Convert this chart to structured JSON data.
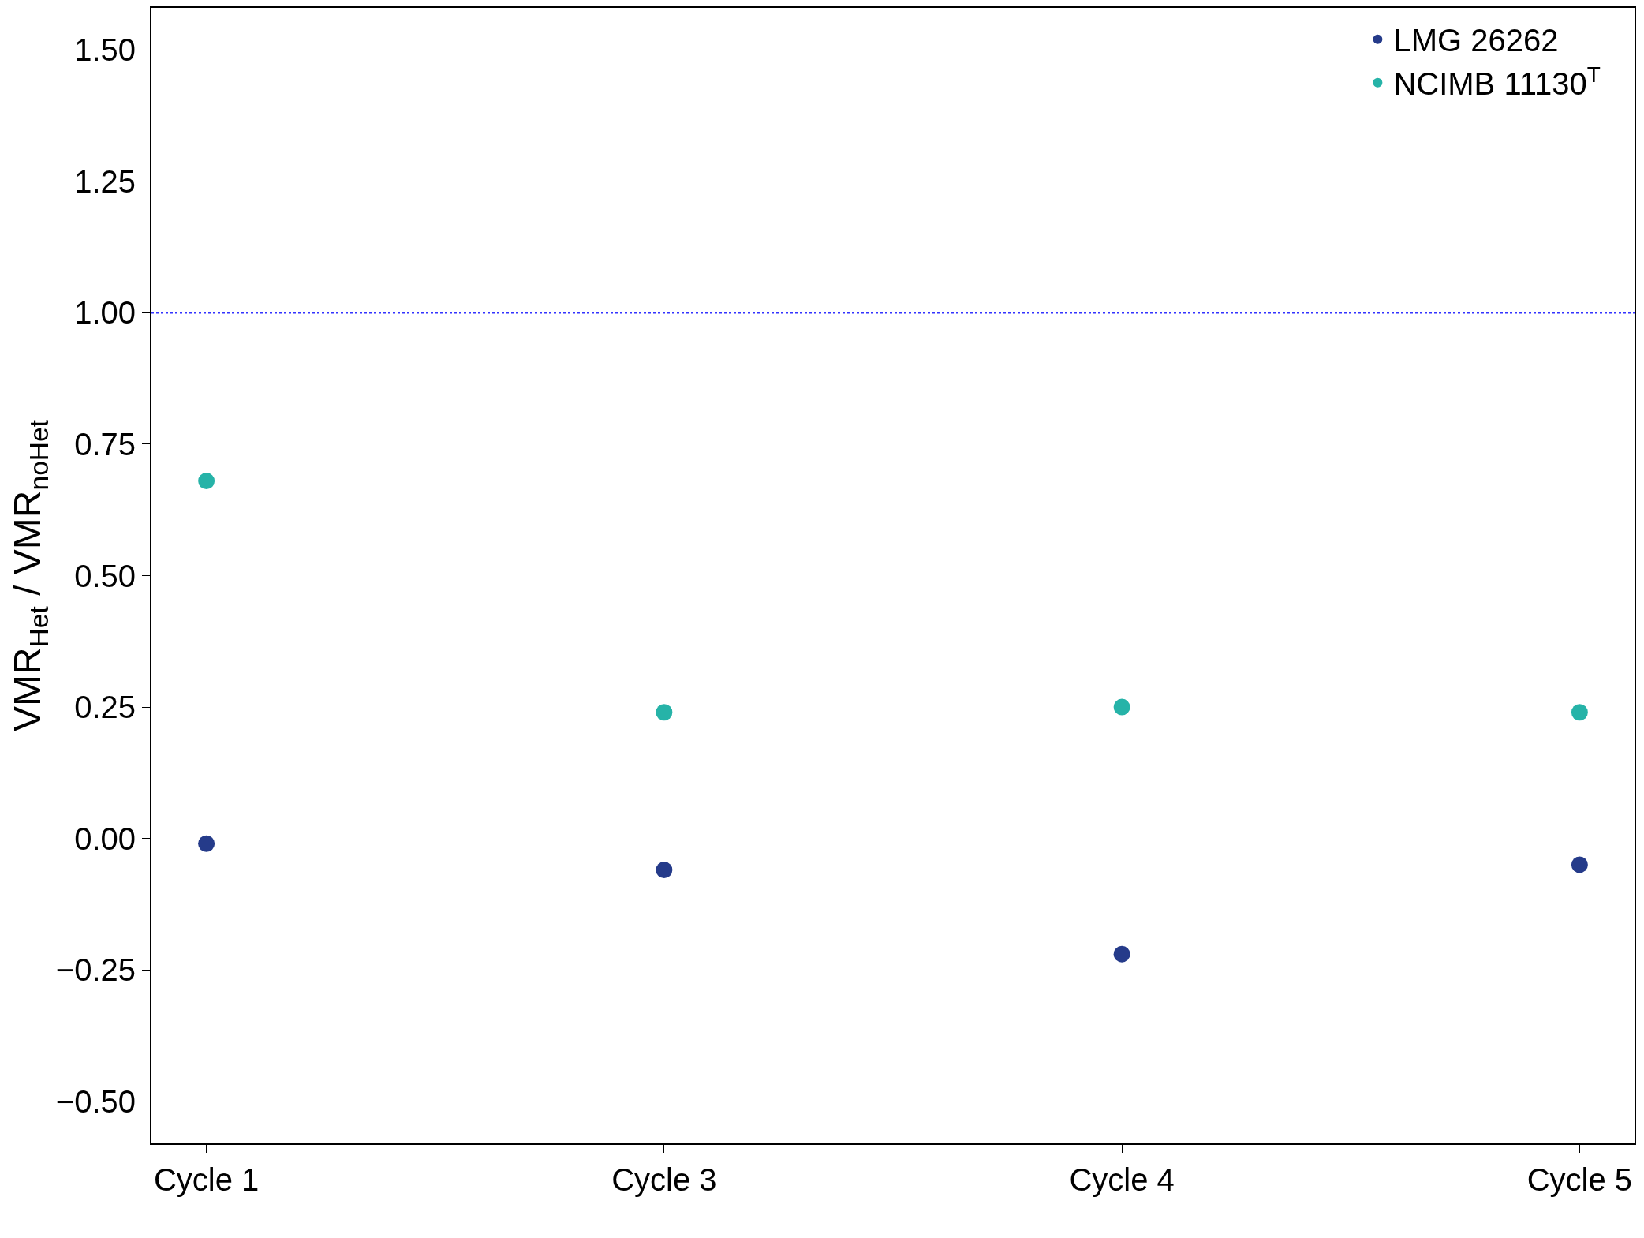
{
  "chart_data": {
    "type": "scatter",
    "ylabel": "VMR$_{Het}$ / VMR$_{noHet}$",
    "categories": [
      "Cycle 1",
      "Cycle 3",
      "Cycle 4",
      "Cycle 5"
    ],
    "series": [
      {
        "name": "LMG 26262",
        "color": "#253b8a",
        "values": [
          -0.01,
          -0.06,
          -0.22,
          -0.05
        ]
      },
      {
        "name": "NCIMB 11130$^{T}$",
        "color": "#26b3a8",
        "values": [
          0.68,
          0.24,
          0.25,
          0.24
        ]
      }
    ],
    "ylim": [
      -0.58,
      1.58
    ],
    "yticks": [
      {
        "value": -0.5,
        "label": "−0.50"
      },
      {
        "value": -0.25,
        "label": "−0.25"
      },
      {
        "value": 0,
        "label": "0.00"
      },
      {
        "value": 0.25,
        "label": "0.25"
      },
      {
        "value": 0.5,
        "label": "0.50"
      },
      {
        "value": 0.75,
        "label": "0.75"
      },
      {
        "value": 1,
        "label": "1.00"
      },
      {
        "value": 1.25,
        "label": "1.25"
      },
      {
        "value": 1.5,
        "label": "1.50"
      }
    ],
    "ref_lines": [
      {
        "axis": "y",
        "value": 1,
        "color": "#3333ff",
        "line_style": "dotted"
      }
    ],
    "grid": false,
    "legend": "top right",
    "marker": "circle"
  }
}
